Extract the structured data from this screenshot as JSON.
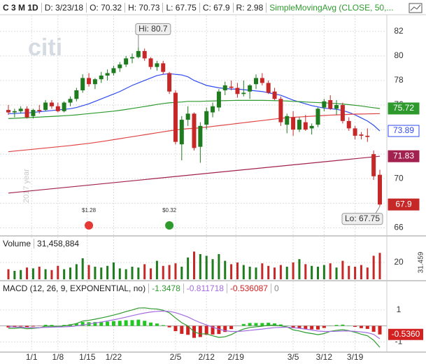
{
  "chart_data": [
    {
      "type": "candlestick",
      "header": {
        "symbol": "C 3 M 1D",
        "fields": [
          "D: 3/23/18",
          "O: 70.32",
          "H: 70.73",
          "L: 67.75",
          "C: 67.9",
          "R: 2.98"
        ],
        "study": "SimpleMovingAvg (CLOSE, 50,..."
      },
      "watermark": "citi",
      "year_label": "2017 year",
      "x": [
        "12/26",
        "12/27",
        "12/28",
        "12/29",
        "1/2",
        "1/3",
        "1/4",
        "1/5",
        "1/8",
        "1/9",
        "1/10",
        "1/11",
        "1/12",
        "1/16",
        "1/17",
        "1/18",
        "1/19",
        "1/22",
        "1/23",
        "1/24",
        "1/25",
        "1/26",
        "1/29",
        "1/30",
        "1/31",
        "2/1",
        "2/2",
        "2/5",
        "2/6",
        "2/7",
        "2/8",
        "2/9",
        "2/12",
        "2/13",
        "2/14",
        "2/15",
        "2/16",
        "2/20",
        "2/21",
        "2/22",
        "2/23",
        "2/26",
        "2/27",
        "2/28",
        "3/1",
        "3/2",
        "3/5",
        "3/6",
        "3/7",
        "3/8",
        "3/9",
        "3/12",
        "3/13",
        "3/14",
        "3/15",
        "3/16",
        "3/19",
        "3/20",
        "3/21",
        "3/22",
        "3/23"
      ],
      "open": [
        75.6,
        75.4,
        75.5,
        75.7,
        75.1,
        75.6,
        75.6,
        76.2,
        75.9,
        75.5,
        76.2,
        76.5,
        77.2,
        78.2,
        77.7,
        78.1,
        78.4,
        78.6,
        79.0,
        79.3,
        79.8,
        79.9,
        80.4,
        79.8,
        79.1,
        79.4,
        78.6,
        77.0,
        72.8,
        74.8,
        75.3,
        72.6,
        74.4,
        75.4,
        75.8,
        77.2,
        77.5,
        77.4,
        76.9,
        77.1,
        77.7,
        78.2,
        77.8,
        77.1,
        76.5,
        74.4,
        75.0,
        74.0,
        74.6,
        74.1,
        74.4,
        75.8,
        76.4,
        75.7,
        76.0,
        74.7,
        74.1,
        73.6,
        73.5,
        72.0,
        70.32
      ],
      "high": [
        76.0,
        75.7,
        75.9,
        75.9,
        75.7,
        76.0,
        76.4,
        76.4,
        76.2,
        76.3,
        76.7,
        77.4,
        78.5,
        78.6,
        78.2,
        78.7,
        78.9,
        79.2,
        79.5,
        80.0,
        80.2,
        80.7,
        80.6,
        79.9,
        79.6,
        79.6,
        78.7,
        77.2,
        75.1,
        75.9,
        75.4,
        74.6,
        75.8,
        76.2,
        77.3,
        77.9,
        78.0,
        77.8,
        78.0,
        77.7,
        78.5,
        78.6,
        78.0,
        77.4,
        76.7,
        75.3,
        75.5,
        75.0,
        75.2,
        74.5,
        75.8,
        76.5,
        76.8,
        76.4,
        76.2,
        75.0,
        74.3,
        73.8,
        74.1,
        72.3,
        70.73
      ],
      "low": [
        75.2,
        75.0,
        75.3,
        74.9,
        74.9,
        75.3,
        75.5,
        75.7,
        75.4,
        75.4,
        75.9,
        76.3,
        77.0,
        77.5,
        77.3,
        77.8,
        78.0,
        78.4,
        78.7,
        79.1,
        79.4,
        79.8,
        79.6,
        78.9,
        78.8,
        78.5,
        76.9,
        72.8,
        71.5,
        74.3,
        72.3,
        71.3,
        74.0,
        75.0,
        75.5,
        76.8,
        77.2,
        76.6,
        76.7,
        76.5,
        77.3,
        77.6,
        76.9,
        76.4,
        74.3,
        73.7,
        73.5,
        73.8,
        73.9,
        73.6,
        74.2,
        75.5,
        75.6,
        75.2,
        74.5,
        73.9,
        73.2,
        73.2,
        73.0,
        69.9,
        67.75
      ],
      "close": [
        75.4,
        75.5,
        75.7,
        75.0,
        75.6,
        75.5,
        76.2,
        75.9,
        75.5,
        76.2,
        76.5,
        77.2,
        78.2,
        77.7,
        78.1,
        78.4,
        78.6,
        79.0,
        79.3,
        79.8,
        79.9,
        80.4,
        79.8,
        79.1,
        79.4,
        78.7,
        77.1,
        73.0,
        74.8,
        75.3,
        72.5,
        74.3,
        75.5,
        75.9,
        77.1,
        77.6,
        77.4,
        76.9,
        77.0,
        77.6,
        78.2,
        77.8,
        77.0,
        76.5,
        74.6,
        75.1,
        74.0,
        74.8,
        74.0,
        74.3,
        75.7,
        76.3,
        75.7,
        76.0,
        74.7,
        74.1,
        73.5,
        73.5,
        73.4,
        70.2,
        67.9
      ],
      "up_color": "#1e7b1e",
      "down_color": "#c62828",
      "series": [
        {
          "color": "#2f4cf0",
          "last_box": true,
          "values": [
            75.3,
            75.3,
            75.35,
            75.35,
            75.4,
            75.45,
            75.5,
            75.55,
            75.6,
            75.65,
            75.7,
            75.8,
            75.95,
            76.1,
            76.3,
            76.5,
            76.7,
            76.9,
            77.1,
            77.35,
            77.6,
            77.8,
            78.0,
            78.2,
            78.4,
            78.5,
            78.55,
            78.5,
            78.45,
            78.3,
            78.0,
            77.8,
            77.6,
            77.5,
            77.4,
            77.35,
            77.3,
            77.3,
            77.25,
            77.2,
            77.15,
            77.1,
            77.0,
            76.9,
            76.8,
            76.6,
            76.4,
            76.25,
            76.1,
            75.95,
            75.85,
            75.75,
            75.7,
            75.65,
            75.55,
            75.4,
            75.2,
            74.95,
            74.7,
            74.35,
            73.89
          ]
        },
        {
          "color": "#2e9a2e",
          "last_box": true,
          "values": [
            74.9,
            74.92,
            74.95,
            74.97,
            75.0,
            75.02,
            75.05,
            75.07,
            75.1,
            75.13,
            75.16,
            75.2,
            75.25,
            75.3,
            75.35,
            75.4,
            75.45,
            75.5,
            75.57,
            75.64,
            75.72,
            75.8,
            75.88,
            75.96,
            76.05,
            76.12,
            76.18,
            76.22,
            76.25,
            76.3,
            76.3,
            76.3,
            76.32,
            76.33,
            76.35,
            76.36,
            76.37,
            76.38,
            76.38,
            76.38,
            76.38,
            76.38,
            76.37,
            76.36,
            76.35,
            76.33,
            76.3,
            76.28,
            76.25,
            76.22,
            76.2,
            76.18,
            76.15,
            76.12,
            76.08,
            76.03,
            75.98,
            75.92,
            75.85,
            75.78,
            75.72
          ]
        },
        {
          "color": "#e04545",
          "last_box": false,
          "values": [
            72.2,
            72.25,
            72.3,
            72.35,
            72.4,
            72.45,
            72.5,
            72.55,
            72.6,
            72.65,
            72.7,
            72.76,
            72.82,
            72.88,
            72.95,
            73.02,
            73.1,
            73.18,
            73.26,
            73.34,
            73.42,
            73.5,
            73.58,
            73.66,
            73.74,
            73.82,
            73.9,
            73.97,
            74.03,
            74.08,
            74.1,
            74.15,
            74.2,
            74.26,
            74.32,
            74.38,
            74.44,
            74.5,
            74.56,
            74.62,
            74.68,
            74.74,
            74.8,
            74.86,
            74.92,
            74.97,
            75.0,
            75.03,
            75.06,
            75.09,
            75.12,
            75.15,
            75.18,
            75.2,
            75.22,
            75.24,
            75.26,
            75.27,
            75.28,
            75.29,
            75.3
          ]
        },
        {
          "color": "#a3214f",
          "last_box": true,
          "values": [
            68.83,
            68.88,
            68.93,
            68.98,
            69.03,
            69.08,
            69.13,
            69.18,
            69.23,
            69.28,
            69.33,
            69.38,
            69.43,
            69.48,
            69.53,
            69.58,
            69.63,
            69.68,
            69.73,
            69.78,
            69.83,
            69.88,
            69.93,
            69.98,
            70.03,
            70.08,
            70.13,
            70.18,
            70.23,
            70.28,
            70.33,
            70.38,
            70.43,
            70.48,
            70.53,
            70.58,
            70.63,
            70.68,
            70.73,
            70.78,
            70.83,
            70.88,
            70.93,
            70.98,
            71.03,
            71.08,
            71.13,
            71.18,
            71.23,
            71.28,
            71.33,
            71.38,
            71.43,
            71.48,
            71.53,
            71.58,
            71.63,
            71.68,
            71.73,
            71.78,
            71.83
          ]
        }
      ],
      "hi_label": "Hi: 80.7",
      "hi_x": "1/26",
      "lo_label": "Lo: 67.75",
      "events": [
        {
          "x": "1/16",
          "label": "$1.28",
          "color": "#e53935"
        },
        {
          "x": "2/2",
          "label": "$0.32",
          "color": "#2e9a2e"
        }
      ],
      "ylim": [
        65.4,
        83.3
      ],
      "yticks": [
        66,
        68,
        70,
        72,
        74,
        76,
        78,
        80,
        82
      ],
      "xticks": [
        "1/1",
        "1/8",
        "1/15",
        "1/22",
        "2/5",
        "2/12",
        "2/19",
        "3/5",
        "3/12",
        "3/19"
      ]
    },
    {
      "type": "bar",
      "title": "Volume",
      "value_label": "31,458,884",
      "last_value_label": "31.459",
      "values": [
        12,
        10,
        11,
        14,
        13,
        15,
        12,
        11,
        16,
        12,
        14,
        18,
        25,
        17,
        15,
        14,
        16,
        20,
        13,
        12,
        15,
        14,
        18,
        13,
        22,
        16,
        17,
        19,
        15,
        26,
        33,
        30,
        28,
        24,
        30,
        22,
        18,
        20,
        17,
        15,
        14,
        19,
        16,
        14,
        17,
        15,
        20,
        24,
        18,
        16,
        15,
        17,
        19,
        14,
        22,
        16,
        15,
        17,
        14,
        28,
        31.458884
      ],
      "ylim": [
        0,
        35
      ],
      "yticks": [
        20
      ]
    },
    {
      "type": "macd",
      "title": "MACD (12, 26, 9, EXPONENTIAL, no)",
      "zero_line": 0,
      "series": [
        {
          "color": "#2e9a2e",
          "values": [
            -0.15,
            -0.15,
            -0.12,
            -0.18,
            -0.15,
            -0.12,
            -0.02,
            -0.02,
            -0.05,
            0.0,
            0.06,
            0.15,
            0.3,
            0.35,
            0.42,
            0.5,
            0.58,
            0.68,
            0.78,
            0.9,
            1.0,
            1.12,
            1.13,
            1.08,
            1.06,
            0.98,
            0.82,
            0.5,
            0.2,
            0.0,
            -0.38,
            -0.5,
            -0.5,
            -0.62,
            -0.72,
            -0.68,
            -0.55,
            -0.35,
            -0.2,
            -0.1,
            -0.06,
            -0.02,
            0.05,
            0.05,
            0.0,
            -0.06,
            -0.25,
            -0.32,
            -0.42,
            -0.48,
            -0.55,
            -0.48,
            -0.34,
            -0.28,
            -0.24,
            -0.3,
            -0.4,
            -0.52,
            -0.62,
            -0.9,
            -1.3478
          ]
        },
        {
          "color": "#a36be0",
          "values": [
            -0.05,
            -0.07,
            -0.08,
            -0.1,
            -0.11,
            -0.11,
            -0.09,
            -0.08,
            -0.07,
            -0.06,
            -0.04,
            0.0,
            0.06,
            0.12,
            0.18,
            0.24,
            0.31,
            0.38,
            0.46,
            0.55,
            0.64,
            0.73,
            0.81,
            0.87,
            0.91,
            0.93,
            0.91,
            0.83,
            0.7,
            0.56,
            0.37,
            0.2,
            0.06,
            -0.08,
            -0.21,
            -0.3,
            -0.35,
            -0.35,
            -0.32,
            -0.28,
            -0.24,
            -0.2,
            -0.15,
            -0.11,
            -0.09,
            -0.08,
            -0.11,
            -0.15,
            -0.2,
            -0.26,
            -0.32,
            -0.35,
            -0.35,
            -0.34,
            -0.32,
            -0.32,
            -0.34,
            -0.38,
            -0.43,
            -0.53,
            -0.811718
          ]
        }
      ],
      "histogram": {
        "up_color": "#22c722",
        "down_color": "#d32020",
        "last_value_label": "-0.5360",
        "values": [
          -0.1,
          -0.08,
          -0.04,
          -0.08,
          -0.04,
          -0.01,
          0.07,
          0.06,
          0.02,
          0.06,
          0.1,
          0.15,
          0.24,
          0.23,
          0.24,
          0.26,
          0.27,
          0.3,
          0.32,
          0.35,
          0.36,
          0.39,
          0.32,
          0.21,
          0.15,
          0.05,
          -0.09,
          -0.33,
          -0.5,
          -0.56,
          -0.75,
          -0.7,
          -0.56,
          -0.54,
          -0.51,
          -0.38,
          -0.2,
          0.0,
          0.12,
          0.18,
          0.18,
          0.18,
          0.2,
          0.16,
          0.09,
          0.02,
          -0.14,
          -0.17,
          -0.22,
          -0.22,
          -0.23,
          -0.13,
          0.01,
          0.06,
          0.08,
          0.02,
          -0.06,
          -0.14,
          -0.19,
          -0.37,
          -0.536087
        ]
      },
      "ylim": [
        -1.6,
        2.0
      ],
      "yticks": [
        -1,
        1
      ]
    }
  ]
}
